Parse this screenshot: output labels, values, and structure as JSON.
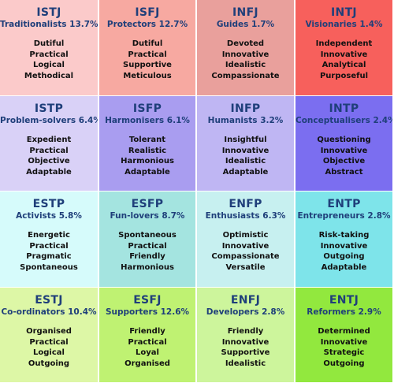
{
  "rows": [
    [
      {
        "code": "ISTJ",
        "role": "Traditionalists 13.7%",
        "traits": [
          "Dutiful",
          "Practical",
          "Logical",
          "Methodical"
        ],
        "color": "#fbcaca"
      },
      {
        "code": "ISFJ",
        "role": "Protectors 12.7%",
        "traits": [
          "Dutiful",
          "Practical",
          "Supportive",
          "Meticulous"
        ],
        "color": "#f7a9a1"
      },
      {
        "code": "INFJ",
        "role": "Guides 1.7%",
        "traits": [
          "Devoted",
          "Innovative",
          "Idealistic",
          "Compassionate"
        ],
        "color": "#e9a09c"
      },
      {
        "code": "INTJ",
        "role": "Visionaries 1.4%",
        "traits": [
          "Independent",
          "Innovative",
          "Analytical",
          "Purposeful"
        ],
        "color": "#f7605c"
      }
    ],
    [
      {
        "code": "ISTP",
        "role": "Problem-solvers 6.4%",
        "traits": [
          "Expedient",
          "Practical",
          "Objective",
          "Adaptable"
        ],
        "color": "#d9d1f7"
      },
      {
        "code": "ISFP",
        "role": "Harmonisers 6.1%",
        "traits": [
          "Tolerant",
          "Realistic",
          "Harmonious",
          "Adaptable"
        ],
        "color": "#a99df0"
      },
      {
        "code": "INFP",
        "role": "Humanists 3.2%",
        "traits": [
          "Insightful",
          "Innovative",
          "Idealistic",
          "Adaptable"
        ],
        "color": "#bfb6f3"
      },
      {
        "code": "INTP",
        "role": "Conceptualisers 2.4%",
        "traits": [
          "Questioning",
          "Innovative",
          "Objective",
          "Abstract"
        ],
        "color": "#7b6ef0"
      }
    ],
    [
      {
        "code": "ESTP",
        "role": "Activists 5.8%",
        "traits": [
          "Energetic",
          "Practical",
          "Pragmatic",
          "Spontaneous"
        ],
        "color": "#d6fbfb"
      },
      {
        "code": "ESFP",
        "role": "Fun-lovers 8.7%",
        "traits": [
          "Spontaneous",
          "Practical",
          "Friendly",
          "Harmonious"
        ],
        "color": "#a4e4e0"
      },
      {
        "code": "ENFP",
        "role": "Enthusiasts 6.3%",
        "traits": [
          "Optimistic",
          "Innovative",
          "Compassionate",
          "Versatile"
        ],
        "color": "#c7f0f0"
      },
      {
        "code": "ENTP",
        "role": "Entrepreneurs 2.8%",
        "traits": [
          "Risk-taking",
          "Innovative",
          "Outgoing",
          "Adaptable"
        ],
        "color": "#7ee4ea"
      }
    ],
    [
      {
        "code": "ESTJ",
        "role": "Co-ordinators 10.4%",
        "traits": [
          "Organised",
          "Practical",
          "Logical",
          "Outgoing"
        ],
        "color": "#ddf7a6"
      },
      {
        "code": "ESFJ",
        "role": "Supporters 12.6%",
        "traits": [
          "Friendly",
          "Practical",
          "Loyal",
          "Organised"
        ],
        "color": "#bff272"
      },
      {
        "code": "ENFJ",
        "role": "Developers 2.8%",
        "traits": [
          "Friendly",
          "Innovative",
          "Supportive",
          "Idealistic"
        ],
        "color": "#cdf59c"
      },
      {
        "code": "ENTJ",
        "role": "Reformers 2.9%",
        "traits": [
          "Determined",
          "Innovative",
          "Strategic",
          "Outgoing"
        ],
        "color": "#92e83e"
      }
    ]
  ]
}
